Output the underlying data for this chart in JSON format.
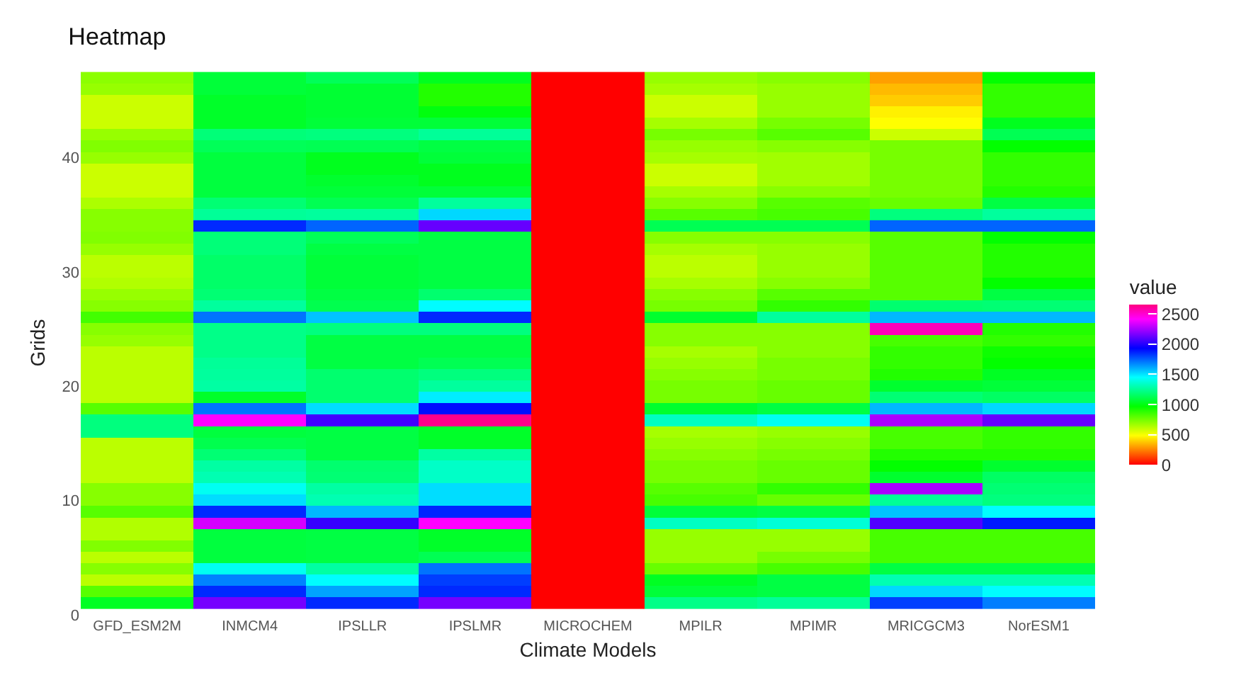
{
  "chart_data": {
    "type": "heatmap",
    "title": "Heatmap",
    "xlabel": "Climate Models",
    "ylabel": "Grids",
    "clabel": "value",
    "categories": [
      "GFD_ESM2M",
      "INMCM4",
      "IPSLLR",
      "IPSLMR",
      "MICROCHEM",
      "MPILR",
      "MPIMR",
      "MRICGCM3",
      "NorESM1"
    ],
    "y": [
      47,
      46,
      45,
      44,
      43,
      42,
      41,
      40,
      39,
      38,
      37,
      36,
      35,
      34,
      33,
      32,
      31,
      30,
      29,
      28,
      27,
      26,
      25,
      24,
      23,
      22,
      21,
      20,
      19,
      18,
      17,
      16,
      15,
      14,
      13,
      12,
      11,
      10,
      9,
      8,
      7,
      6,
      5,
      4,
      3,
      2,
      1
    ],
    "ylim": [
      0,
      47.6
    ],
    "yticks": [
      0,
      10,
      20,
      30,
      40
    ],
    "clim": [
      0,
      2650
    ],
    "cticks": [
      0,
      500,
      1000,
      1500,
      2000,
      2500
    ],
    "colors": [
      "#ff0000",
      "#ff8000",
      "#ffff00",
      "#80ff00",
      "#00ff00",
      "#00ff80",
      "#00ffff",
      "#0080ff",
      "#0000ff",
      "#8000ff",
      "#ff00ff",
      "#ff0080"
    ],
    "cells": [
      [
        700,
        1070,
        1130,
        1020,
        0,
        680,
        710,
        300,
        960
      ],
      [
        680,
        1070,
        1060,
        900,
        0,
        650,
        680,
        350,
        870
      ],
      [
        580,
        1040,
        1060,
        900,
        0,
        580,
        680,
        385,
        870
      ],
      [
        580,
        1040,
        1060,
        990,
        0,
        580,
        680,
        455,
        870
      ],
      [
        580,
        1040,
        1070,
        1070,
        0,
        650,
        740,
        480,
        1020
      ],
      [
        680,
        1190,
        1200,
        1250,
        0,
        740,
        800,
        580,
        1120
      ],
      [
        720,
        1130,
        1120,
        1090,
        0,
        680,
        710,
        740,
        960
      ],
      [
        680,
        1080,
        1020,
        1070,
        0,
        650,
        660,
        740,
        870
      ],
      [
        580,
        1080,
        1020,
        1020,
        0,
        580,
        660,
        740,
        870
      ],
      [
        580,
        1080,
        1050,
        1020,
        0,
        580,
        660,
        740,
        870
      ],
      [
        580,
        1080,
        1070,
        1070,
        0,
        650,
        710,
        740,
        900
      ],
      [
        640,
        1180,
        1120,
        1260,
        0,
        710,
        800,
        770,
        1090
      ],
      [
        710,
        1250,
        1260,
        1520,
        0,
        800,
        830,
        1200,
        1260
      ],
      [
        710,
        1850,
        1740,
        2120,
        0,
        1120,
        1120,
        1740,
        1740
      ],
      [
        720,
        1190,
        1130,
        1090,
        0,
        710,
        710,
        800,
        960
      ],
      [
        680,
        1190,
        1090,
        1090,
        0,
        650,
        680,
        800,
        900
      ],
      [
        610,
        1160,
        1070,
        1090,
        0,
        610,
        680,
        800,
        900
      ],
      [
        610,
        1160,
        1070,
        1090,
        0,
        610,
        680,
        800,
        900
      ],
      [
        630,
        1160,
        1070,
        1090,
        0,
        650,
        710,
        800,
        960
      ],
      [
        680,
        1180,
        1090,
        1170,
        0,
        710,
        800,
        800,
        1090
      ],
      [
        710,
        1260,
        1110,
        1450,
        0,
        740,
        870,
        1170,
        1180
      ],
      [
        840,
        1710,
        1560,
        1850,
        0,
        1050,
        1260,
        1580,
        1580
      ],
      [
        710,
        1220,
        1200,
        1200,
        0,
        710,
        710,
        2540,
        900
      ],
      [
        680,
        1220,
        1090,
        1090,
        0,
        710,
        710,
        830,
        870
      ],
      [
        610,
        1220,
        1090,
        1090,
        0,
        650,
        710,
        870,
        940
      ],
      [
        610,
        1250,
        1090,
        1120,
        0,
        680,
        740,
        870,
        960
      ],
      [
        610,
        1260,
        1170,
        1200,
        0,
        710,
        740,
        900,
        1030
      ],
      [
        610,
        1270,
        1170,
        1260,
        0,
        740,
        770,
        1050,
        1070
      ],
      [
        610,
        1040,
        1170,
        1480,
        0,
        740,
        770,
        1180,
        1150
      ],
      [
        800,
        1710,
        1510,
        1900,
        0,
        1050,
        1090,
        1580,
        1520
      ],
      [
        1200,
        2410,
        2050,
        2630,
        0,
        1330,
        1420,
        2250,
        2120
      ],
      [
        1200,
        1080,
        1090,
        1040,
        0,
        650,
        680,
        830,
        870
      ],
      [
        610,
        1110,
        1090,
        1040,
        0,
        680,
        710,
        830,
        870
      ],
      [
        610,
        1180,
        1090,
        1270,
        0,
        710,
        740,
        900,
        900
      ],
      [
        610,
        1270,
        1170,
        1340,
        0,
        740,
        770,
        960,
        1050
      ],
      [
        610,
        1300,
        1180,
        1340,
        0,
        740,
        770,
        1050,
        1150
      ],
      [
        710,
        1420,
        1270,
        1510,
        0,
        800,
        870,
        2250,
        1180
      ],
      [
        710,
        1510,
        1300,
        1510,
        0,
        830,
        770,
        1250,
        1200
      ],
      [
        800,
        1850,
        1580,
        1860,
        0,
        1070,
        1090,
        1560,
        1450
      ],
      [
        630,
        2330,
        2030,
        2410,
        0,
        1330,
        1370,
        2080,
        1880
      ],
      [
        630,
        1080,
        1090,
        1040,
        0,
        680,
        680,
        830,
        830
      ],
      [
        720,
        1080,
        1090,
        1040,
        0,
        680,
        680,
        830,
        830
      ],
      [
        610,
        1080,
        1090,
        1120,
        0,
        680,
        740,
        830,
        830
      ],
      [
        710,
        1420,
        1270,
        1710,
        0,
        770,
        830,
        1090,
        1090
      ],
      [
        610,
        1680,
        1450,
        1810,
        0,
        1030,
        1090,
        1300,
        1300
      ],
      [
        800,
        1850,
        1620,
        1850,
        0,
        1070,
        1090,
        1520,
        1450
      ],
      [
        1030,
        2150,
        1850,
        2150,
        0,
        1220,
        1250,
        1810,
        1690
      ]
    ]
  }
}
